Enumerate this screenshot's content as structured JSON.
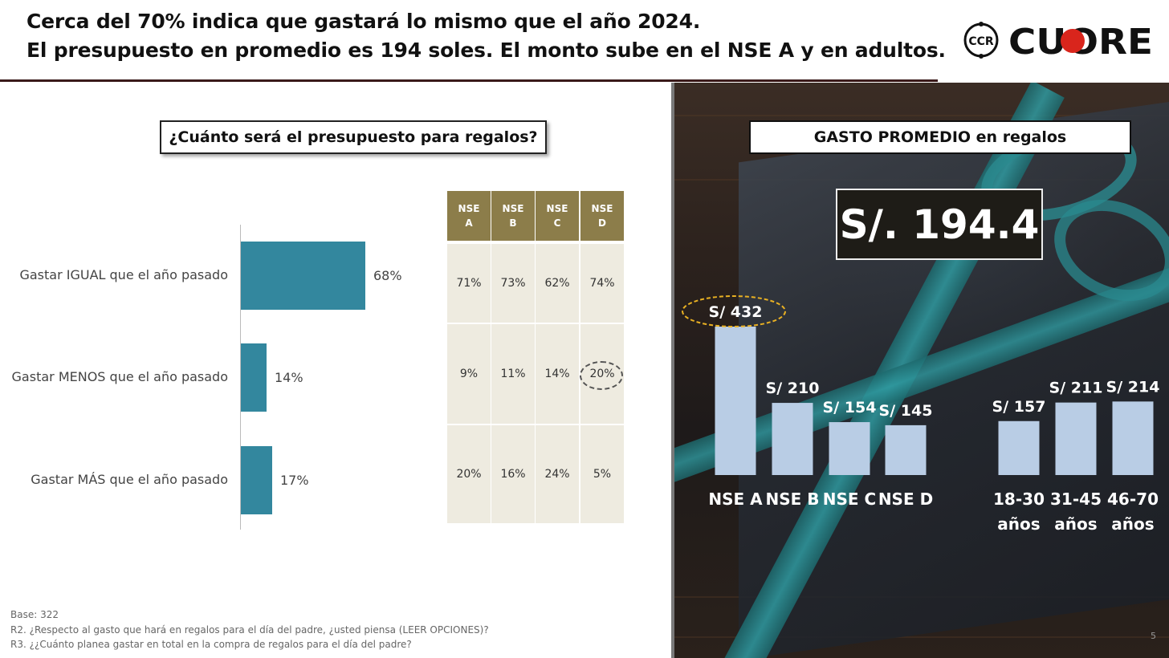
{
  "header": {
    "title_line1": "Cerca del 70% indica que gastará lo mismo que el año 2024.",
    "title_line2": "El presupuesto en promedio es 194 soles. El monto sube en el NSE A y en adultos.",
    "logo_badge": "CCR",
    "logo_text": "CUORE"
  },
  "left": {
    "question": "¿Cuánto será el presupuesto para regalos?",
    "table_headers": [
      [
        "NSE",
        "A"
      ],
      [
        "NSE",
        "B"
      ],
      [
        "NSE",
        "C"
      ],
      [
        "NSE",
        "D"
      ]
    ],
    "table_rows": [
      [
        "71%",
        "73%",
        "62%",
        "74%"
      ],
      [
        "9%",
        "11%",
        "14%",
        "20%"
      ],
      [
        "20%",
        "16%",
        "24%",
        "5%"
      ]
    ],
    "footnotes": [
      "Base: 322",
      "R2. ¿Respecto al gasto que hará en regalos para el día del padre, ¿usted piensa (LEER OPCIONES)?",
      "R3. ¿¿Cuánto planea gastar en total en la compra de regalos para el día del padre?"
    ]
  },
  "right": {
    "title": "GASTO PROMEDIO en regalos",
    "average": "S/. 194.4",
    "page_number": "5"
  },
  "colors": {
    "bar_left": "#33879e",
    "table_header": "#8c7d4a",
    "table_cell": "#eeebe0",
    "bar_right": "#b9cde5",
    "highlight_ellipse": "#e8b023"
  },
  "chart_data": [
    {
      "type": "bar",
      "orientation": "horizontal",
      "categories": [
        "Gastar IGUAL que el año pasado",
        "Gastar MENOS que el año pasado",
        "Gastar MÁS que el año pasado"
      ],
      "values": [
        68,
        14,
        17
      ],
      "labels": [
        "68%",
        "14%",
        "17%"
      ],
      "title": "¿Cuánto será el presupuesto para regalos?",
      "xlim": [
        0,
        100
      ]
    },
    {
      "type": "bar",
      "categories": [
        "NSE A",
        "NSE B",
        "NSE C",
        "NSE D",
        "18-30 años",
        "31-45 años",
        "46-70 años"
      ],
      "values": [
        432,
        210,
        154,
        145,
        157,
        211,
        214
      ],
      "labels": [
        "S/ 432",
        "S/ 210",
        "S/ 154",
        "S/ 145",
        "S/ 157",
        "S/ 211",
        "S/ 214"
      ],
      "title": "GASTO PROMEDIO en regalos",
      "ylim": [
        0,
        450
      ]
    }
  ]
}
